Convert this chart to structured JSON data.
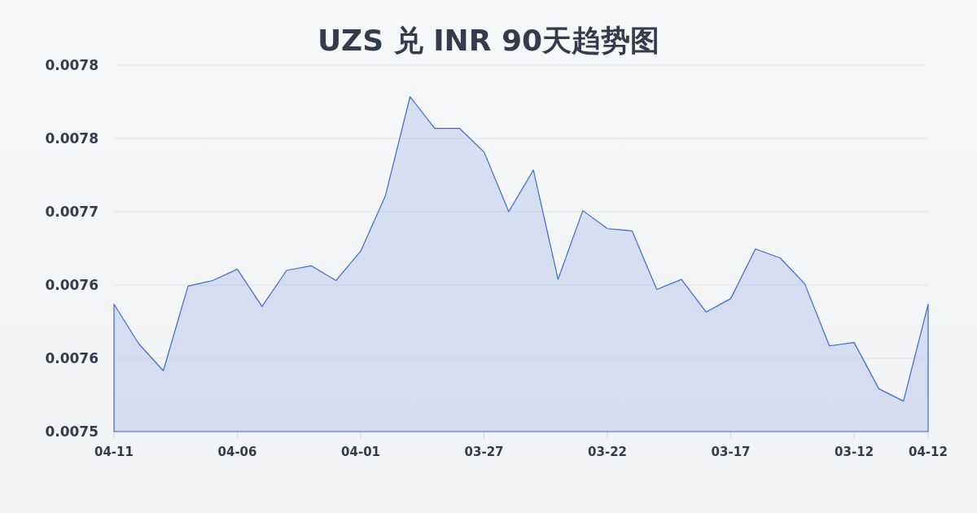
{
  "chart_data": {
    "type": "area",
    "title": "UZS 兑 INR 90天趋势图",
    "categories": [
      "04-11",
      null,
      null,
      null,
      null,
      "04-06",
      null,
      null,
      null,
      null,
      "04-01",
      null,
      null,
      null,
      null,
      "03-27",
      null,
      null,
      null,
      null,
      "03-22",
      null,
      null,
      null,
      null,
      "03-17",
      null,
      null,
      null,
      null,
      "03-12",
      null,
      null,
      "04-12"
    ],
    "values": [
      0.007613,
      0.007578,
      0.007554,
      0.007629,
      0.007634,
      0.007644,
      0.007611,
      0.007643,
      0.007647,
      0.007634,
      0.00766,
      0.007709,
      0.007797,
      0.007769,
      0.007769,
      0.007748,
      0.007695,
      0.007732,
      0.007635,
      0.007696,
      0.00768,
      0.007678,
      0.007626,
      0.007635,
      0.007606,
      0.007618,
      0.007662,
      0.007654,
      0.007631,
      0.007576,
      0.007579,
      0.007538,
      0.007527,
      0.007613
    ],
    "color": "#3a6bd1",
    "ylim": [
      0.0075,
      0.007825
    ],
    "yticks": [
      {
        "value": 0.0075,
        "label": "0.0075"
      },
      {
        "value": 0.007565,
        "label": "0.0076"
      },
      {
        "value": 0.00763,
        "label": "0.0076"
      },
      {
        "value": 0.007695,
        "label": "0.0077"
      },
      {
        "value": 0.00776,
        "label": "0.0078"
      },
      {
        "value": 0.007825,
        "label": "0.0078"
      }
    ],
    "grid": "y"
  }
}
